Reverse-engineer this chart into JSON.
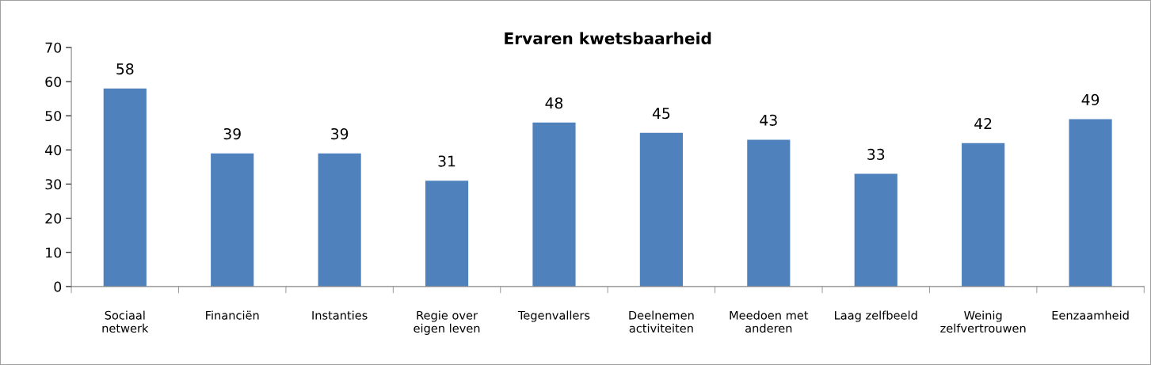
{
  "chart_data": {
    "type": "bar",
    "title": "Ervaren kwetsbaarheid",
    "categories": [
      "Sociaal\nnetwerk",
      "Financiën",
      "Instanties",
      "Regie over\neigen leven",
      "Tegenvallers",
      "Deelnemen\nactiviteiten",
      "Meedoen met\nanderen",
      "Laag zelfbeeld",
      "Weinig\nzelfvertrouwen",
      "Eenzaamheid"
    ],
    "values": [
      58,
      39,
      39,
      31,
      48,
      45,
      43,
      33,
      42,
      49
    ],
    "color": "#4f81bd",
    "ylim": [
      0,
      70
    ],
    "yticks": [
      0,
      10,
      20,
      30,
      40,
      50,
      60,
      70
    ],
    "grid": false,
    "legend": false,
    "data_labels": true
  }
}
